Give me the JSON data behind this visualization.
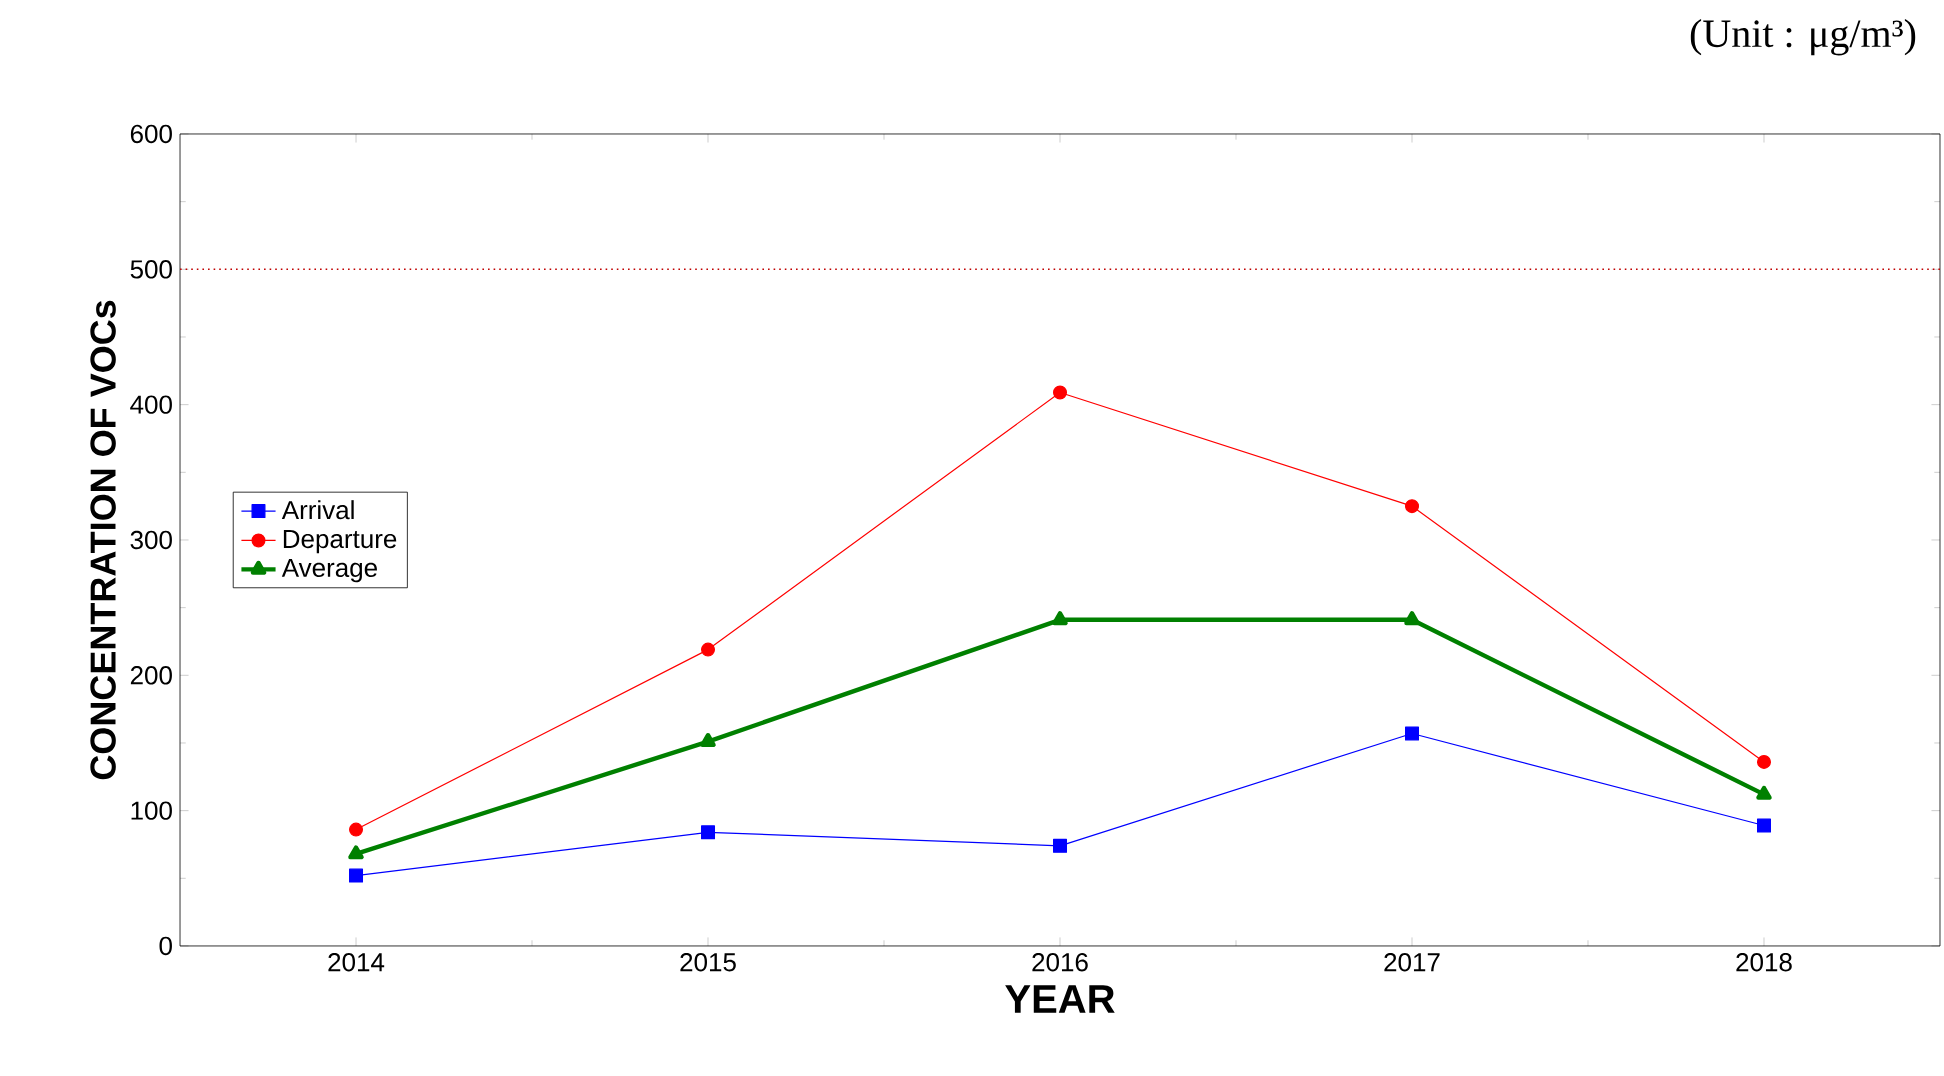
{
  "chart_data": {
    "type": "line",
    "xlabel": "YEAR",
    "ylabel": "CONCENTRATION OF VOCs",
    "annotations": [
      "(Unit : μg/m³)"
    ],
    "x": [
      2014,
      2015,
      2016,
      2017,
      2018
    ],
    "series": [
      {
        "name": "Arrival",
        "color": "#0000ff",
        "marker": "square",
        "values": [
          52,
          84,
          74,
          157,
          89
        ]
      },
      {
        "name": "Departure",
        "color": "#ff0000",
        "marker": "circle",
        "values": [
          86,
          219,
          409,
          325,
          136
        ]
      },
      {
        "name": "Average",
        "color": "#008000",
        "marker": "triangle",
        "values": [
          68,
          151,
          241,
          241,
          112
        ]
      }
    ],
    "ref_lines": [
      {
        "axis": "y",
        "value": 500,
        "color": "#c00000",
        "line_style": "dotted"
      }
    ],
    "xlim": [
      2013.5,
      2018.5
    ],
    "ylim": [
      0,
      600
    ],
    "xticks": [
      2014,
      2015,
      2016,
      2017,
      2018
    ],
    "yticks": [
      0,
      100,
      200,
      300,
      400,
      500,
      600
    ],
    "grid": false,
    "legend": "left"
  }
}
